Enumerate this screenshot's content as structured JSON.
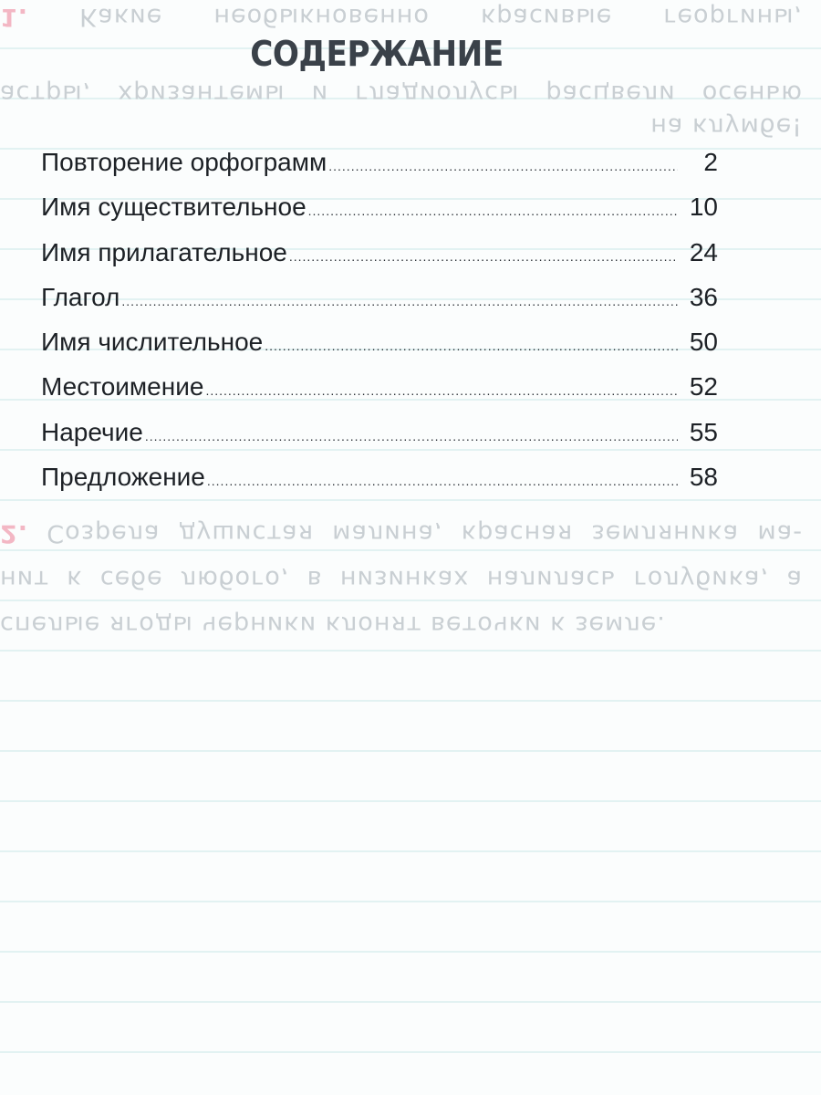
{
  "title": "СОДЕРЖАНИЕ",
  "toc": [
    {
      "title": "Повторение  орфограмм",
      "page": "2"
    },
    {
      "title": "Имя  существительное",
      "page": "10"
    },
    {
      "title": "Имя  прилагательное",
      "page": "24"
    },
    {
      "title": "Глагол",
      "page": "36"
    },
    {
      "title": "Имя  числительное",
      "page": "50"
    },
    {
      "title": "Местоимение",
      "page": "52"
    },
    {
      "title": "Наречие",
      "page": "55"
    },
    {
      "title": "Предложение",
      "page": "58"
    }
  ],
  "bleed_through": {
    "ex1_num": "1.",
    "ex1_lines": [
      "Какие необыкновенно красивые георгины,",
      "астры, хризантемы и гладиолусы расцвели осенью",
      "на клумбе!"
    ],
    "ex2_num": "2.",
    "ex2_lines": [
      "Созрела душистая малина, красная земляника ма-",
      "нит к себе любого, в низинках налилась голубика, а",
      "спелые ягоды черники клонят веточки к земле."
    ]
  },
  "colors": {
    "title": "#3a4149",
    "text": "#1d2126",
    "rules": "#dcefef",
    "bleed": "#c9cfd3"
  }
}
